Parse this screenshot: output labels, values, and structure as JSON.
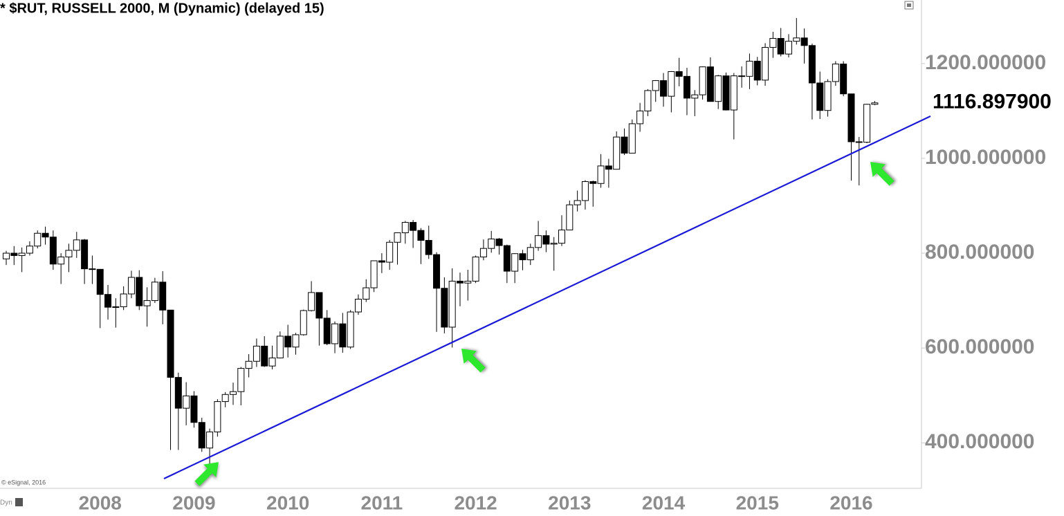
{
  "chart_data": {
    "type": "candlestick",
    "title": "* $RUT, RUSSELL 2000, M (Dynamic) (delayed 15)",
    "copyright": "© eSignal, 2016",
    "corner_label": "Dyn",
    "categories": [
      null,
      null,
      null,
      null,
      null,
      null,
      null,
      null,
      null,
      null,
      null,
      null,
      "2008",
      null,
      null,
      null,
      null,
      null,
      null,
      null,
      null,
      null,
      null,
      null,
      "2009",
      null,
      null,
      null,
      null,
      null,
      null,
      null,
      null,
      null,
      null,
      null,
      "2010",
      null,
      null,
      null,
      null,
      null,
      null,
      null,
      null,
      null,
      null,
      null,
      "2011",
      null,
      null,
      null,
      null,
      null,
      null,
      null,
      null,
      null,
      null,
      null,
      "2012",
      null,
      null,
      null,
      null,
      null,
      null,
      null,
      null,
      null,
      null,
      null,
      "2013",
      null,
      null,
      null,
      null,
      null,
      null,
      null,
      null,
      null,
      null,
      null,
      "2014",
      null,
      null,
      null,
      null,
      null,
      null,
      null,
      null,
      null,
      null,
      null,
      "2015",
      null,
      null,
      null,
      null,
      null,
      null,
      null,
      null,
      null,
      null,
      null,
      "2016",
      null,
      null,
      null
    ],
    "open": [
      788,
      800,
      795,
      800,
      815,
      842,
      834,
      777,
      792,
      806,
      828,
      767,
      766,
      713,
      686,
      687,
      714,
      749,
      689,
      700,
      739,
      680,
      538,
      473,
      499,
      443,
      389,
      423,
      487,
      502,
      508,
      557,
      572,
      604,
      562,
      579,
      625,
      602,
      628,
      679,
      717,
      663,
      609,
      651,
      602,
      676,
      703,
      727,
      784,
      781,
      823,
      843,
      865,
      848,
      827,
      797,
      726,
      644,
      741,
      737,
      741,
      792,
      810,
      830,
      816,
      762,
      799,
      786,
      812,
      837,
      819,
      821,
      849,
      902,
      911,
      951,
      947,
      984,
      977,
      1045,
      1011,
      1073,
      1100,
      1143,
      1164,
      1131,
      1183,
      1173,
      1127,
      1134,
      1193,
      1120,
      1174,
      1102,
      1174,
      1173,
      1205,
      1165,
      1234,
      1253,
      1220,
      1247,
      1254,
      1238,
      1159,
      1101,
      1162,
      1199,
      1136,
      1035,
      1034,
      1114
    ],
    "high": [
      805,
      815,
      812,
      825,
      848,
      856,
      848,
      800,
      820,
      845,
      830,
      795,
      766,
      733,
      705,
      730,
      763,
      764,
      728,
      748,
      762,
      680,
      548,
      528,
      509,
      453,
      430,
      492,
      507,
      527,
      560,
      587,
      620,
      625,
      605,
      635,
      649,
      632,
      681,
      741,
      717,
      680,
      656,
      674,
      680,
      713,
      745,
      784,
      800,
      828,
      844,
      868,
      870,
      853,
      858,
      802,
      749,
      768,
      759,
      765,
      795,
      829,
      847,
      832,
      818,
      800,
      807,
      820,
      868,
      848,
      834,
      880,
      911,
      932,
      954,
      953,
      1009,
      999,
      1057,
      1063,
      1082,
      1117,
      1146,
      1165,
      1180,
      1184,
      1212,
      1191,
      1144,
      1194,
      1213,
      1176,
      1181,
      1180,
      1194,
      1221,
      1214,
      1243,
      1267,
      1275,
      1262,
      1296,
      1274,
      1242,
      1183,
      1167,
      1205,
      1205,
      1136,
      1045,
      1115,
      1121
    ],
    "low": [
      775,
      775,
      760,
      795,
      810,
      818,
      765,
      735,
      760,
      790,
      735,
      735,
      642,
      660,
      643,
      680,
      705,
      680,
      645,
      695,
      650,
      385,
      385,
      437,
      432,
      381,
      343,
      413,
      475,
      480,
      479,
      538,
      560,
      560,
      555,
      578,
      580,
      586,
      626,
      677,
      605,
      606,
      589,
      590,
      598,
      670,
      697,
      718,
      758,
      765,
      776,
      820,
      811,
      777,
      788,
      634,
      631,
      601,
      688,
      700,
      737,
      785,
      801,
      797,
      737,
      737,
      764,
      775,
      805,
      802,
      763,
      815,
      849,
      888,
      892,
      898,
      938,
      938,
      977,
      1007,
      1011,
      1056,
      1089,
      1119,
      1109,
      1097,
      1152,
      1091,
      1089,
      1124,
      1120,
      1104,
      1101,
      1040,
      1149,
      1146,
      1154,
      1153,
      1212,
      1215,
      1213,
      1240,
      1200,
      1082,
      1083,
      1088,
      1153,
      1131,
      953,
      943,
      1032,
      1112
    ],
    "close": [
      800,
      795,
      800,
      815,
      842,
      834,
      777,
      792,
      806,
      828,
      767,
      766,
      713,
      686,
      687,
      714,
      749,
      689,
      700,
      739,
      680,
      538,
      473,
      499,
      443,
      389,
      423,
      487,
      502,
      508,
      557,
      572,
      604,
      562,
      579,
      625,
      602,
      628,
      679,
      717,
      663,
      609,
      651,
      602,
      676,
      703,
      727,
      784,
      781,
      823,
      843,
      865,
      848,
      827,
      797,
      726,
      644,
      741,
      737,
      741,
      792,
      810,
      830,
      816,
      762,
      799,
      786,
      812,
      837,
      819,
      821,
      849,
      902,
      911,
      951,
      947,
      984,
      977,
      1045,
      1011,
      1073,
      1100,
      1143,
      1164,
      1131,
      1183,
      1173,
      1127,
      1134,
      1193,
      1120,
      1174,
      1102,
      1174,
      1173,
      1205,
      1165,
      1234,
      1253,
      1220,
      1247,
      1254,
      1238,
      1159,
      1101,
      1162,
      1199,
      1136,
      1035,
      1034,
      1114,
      1117
    ],
    "up_color": "#ffffff",
    "down_color": "#000000",
    "ylim": [
      304,
      1334
    ],
    "yticks": [
      {
        "value": 400,
        "label": "400.000000"
      },
      {
        "value": 600,
        "label": "600.000000"
      },
      {
        "value": 800,
        "label": "800.000000"
      },
      {
        "value": 1000,
        "label": "1000.000000"
      },
      {
        "value": 1200,
        "label": "1200.000000"
      }
    ],
    "last_price": {
      "value": 1116.8979,
      "label": "1116.897900"
    }
  }
}
